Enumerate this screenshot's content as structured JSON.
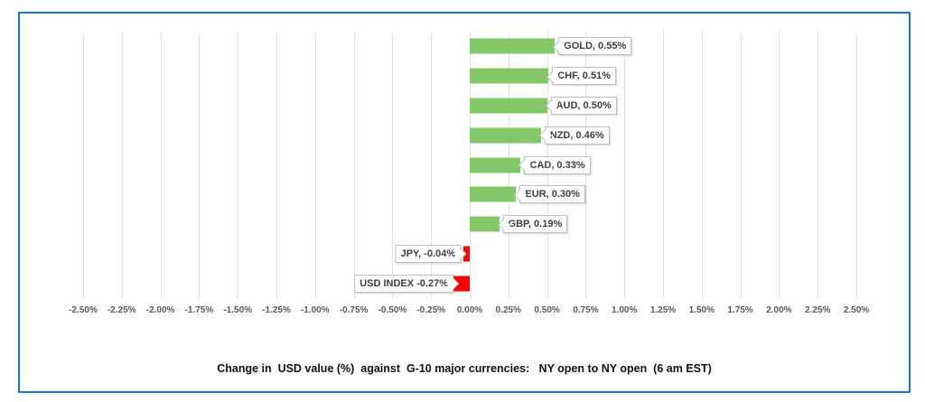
{
  "chart_data": {
    "type": "bar",
    "orientation": "horizontal",
    "title": "Change in  USD value (%)  against  G-10 major currencies:   NY open to NY open  (6 am EST)",
    "categories": [
      "GOLD",
      "CHF",
      "AUD",
      "NZD",
      "CAD",
      "EUR",
      "GBP",
      "JPY",
      "USD INDEX"
    ],
    "values": [
      0.55,
      0.51,
      0.5,
      0.46,
      0.33,
      0.3,
      0.19,
      -0.04,
      -0.27
    ],
    "point_labels": [
      "GOLD, 0.55%",
      "CHF, 0.51%",
      "AUD, 0.50%",
      "NZD, 0.46%",
      "CAD, 0.33%",
      "EUR, 0.30%",
      "GBP, 0.19%",
      "JPY, -0.04%",
      "USD INDEX -0.27%"
    ],
    "x_ticks": [
      "-2.50%",
      "-2.25%",
      "-2.00%",
      "-1.75%",
      "-1.50%",
      "-1.25%",
      "-1.00%",
      "-0.75%",
      "-0.50%",
      "-0.25%",
      "0.00%",
      "0.25%",
      "0.50%",
      "0.75%",
      "1.00%",
      "1.25%",
      "1.50%",
      "1.75%",
      "2.00%",
      "2.25%",
      "2.50%"
    ],
    "xlim": [
      -2.5,
      2.5
    ],
    "grid": "vertical",
    "legend": false,
    "colors": {
      "positive_bar": "#82C868",
      "negative_bar": "#FF0000",
      "gridline": "#E2E2E2",
      "axis_text": "#595959",
      "label_text": "#3F3F3F",
      "label_border": "#BFBFBF",
      "frame_border": "#1B7AC7",
      "title_text": "#121212"
    }
  }
}
